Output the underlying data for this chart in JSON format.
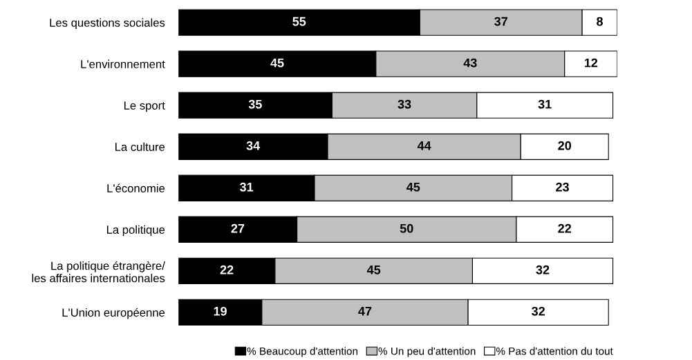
{
  "chart_data": {
    "type": "bar",
    "orientation": "horizontal",
    "stacked": true,
    "data_labels": true,
    "legend": "bottom",
    "grid": false,
    "categories": [
      "Les questions sociales",
      "L'environnement",
      "Le sport",
      "La culture",
      "L'économie",
      "La politique",
      "La politique étrangère/\nles affaires internationales",
      "L'Union européenne"
    ],
    "series": [
      {
        "name": "% Beaucoup d'attention",
        "color": "#000000",
        "values": [
          55,
          45,
          35,
          34,
          31,
          27,
          22,
          19
        ]
      },
      {
        "name": "% Un peu d'attention",
        "color": "#c0c0c0",
        "values": [
          37,
          43,
          33,
          44,
          45,
          50,
          45,
          47
        ]
      },
      {
        "name": "% Pas d'attention du tout",
        "color": "#ffffff",
        "values": [
          8,
          12,
          31,
          20,
          23,
          22,
          32,
          32
        ]
      }
    ]
  }
}
